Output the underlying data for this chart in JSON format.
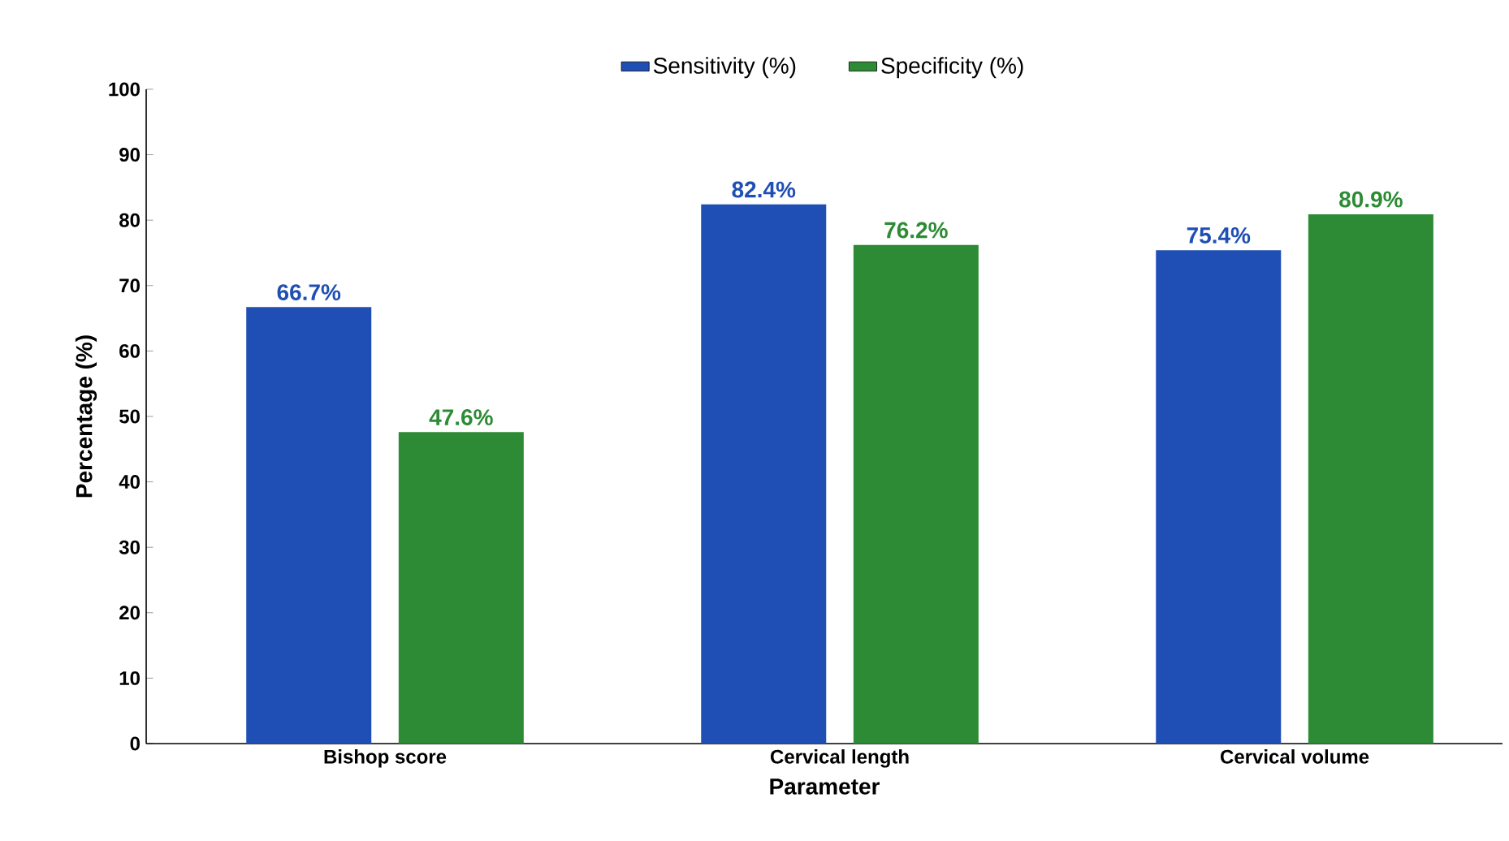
{
  "chart_data": {
    "type": "bar",
    "xlabel": "Parameter",
    "ylabel": "Percentage (%)",
    "categories": [
      "Bishop score",
      "Cervical length",
      "Cervical volume"
    ],
    "series": [
      {
        "name": "Sensitivity (%)",
        "color": "#1f4fb4",
        "values": [
          66.7,
          82.4,
          75.4
        ],
        "value_labels": [
          "66.7%",
          "82.4%",
          "75.4%"
        ]
      },
      {
        "name": "Specificity (%)",
        "color": "#2e8b35",
        "values": [
          47.6,
          76.2,
          80.9
        ],
        "value_labels": [
          "47.6%",
          "76.2%",
          "80.9%"
        ]
      }
    ],
    "ylim": [
      0,
      100
    ],
    "yticks": [
      0,
      10,
      20,
      30,
      40,
      50,
      60,
      70,
      80,
      90,
      100
    ],
    "legend": "top"
  }
}
